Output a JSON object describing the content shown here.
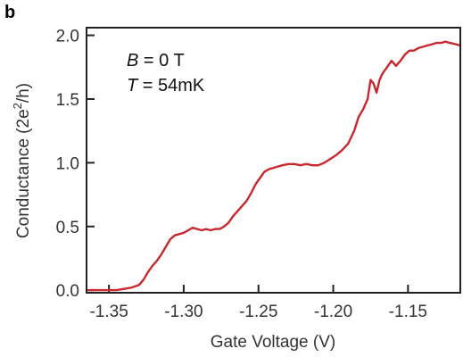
{
  "panel_label": "b",
  "colors": {
    "series": "#c8282d",
    "axis": "#222222"
  },
  "chart_data": {
    "type": "line",
    "title": "",
    "xlabel": "Gate Voltage (V)",
    "ylabel_main": "Conductance (2e",
    "ylabel_sup": "2",
    "ylabel_tail": "/h)",
    "xlim": [
      -1.365,
      -1.115
    ],
    "ylim": [
      -0.02,
      2.06
    ],
    "x_ticks": [
      -1.35,
      -1.3,
      -1.25,
      -1.2,
      -1.15
    ],
    "x_tick_labels": [
      "-1.35",
      "-1.30",
      "-1.25",
      "-1.20",
      "-1.15"
    ],
    "y_ticks": [
      0.0,
      0.5,
      1.0,
      1.5,
      2.0
    ],
    "y_tick_labels": [
      "0.0",
      "0.5",
      "1.0",
      "1.5",
      "2.0"
    ],
    "grid": false,
    "annotations": [
      {
        "var": "B",
        "text": " = 0 T"
      },
      {
        "var": "T",
        "text": " = 54mK"
      }
    ],
    "series": [
      {
        "x": [
          -1.365,
          -1.355,
          -1.345,
          -1.34,
          -1.335,
          -1.33,
          -1.327,
          -1.324,
          -1.321,
          -1.318,
          -1.315,
          -1.312,
          -1.309,
          -1.306,
          -1.303,
          -1.3,
          -1.297,
          -1.294,
          -1.291,
          -1.288,
          -1.285,
          -1.282,
          -1.279,
          -1.276,
          -1.273,
          -1.27,
          -1.267,
          -1.264,
          -1.261,
          -1.258,
          -1.255,
          -1.252,
          -1.249,
          -1.246,
          -1.243,
          -1.24,
          -1.237,
          -1.234,
          -1.23,
          -1.226,
          -1.222,
          -1.218,
          -1.214,
          -1.21,
          -1.206,
          -1.202,
          -1.198,
          -1.194,
          -1.19,
          -1.186,
          -1.183,
          -1.18,
          -1.177,
          -1.175,
          -1.173,
          -1.171,
          -1.169,
          -1.167,
          -1.164,
          -1.161,
          -1.158,
          -1.155,
          -1.152,
          -1.149,
          -1.146,
          -1.143,
          -1.14,
          -1.137,
          -1.134,
          -1.131,
          -1.128,
          -1.125,
          -1.122,
          -1.118,
          -1.115
        ],
        "y": [
          0.0,
          0.0,
          0.0,
          0.01,
          0.02,
          0.04,
          0.08,
          0.14,
          0.19,
          0.23,
          0.28,
          0.34,
          0.4,
          0.43,
          0.44,
          0.45,
          0.47,
          0.49,
          0.48,
          0.47,
          0.48,
          0.47,
          0.48,
          0.48,
          0.5,
          0.53,
          0.58,
          0.62,
          0.66,
          0.7,
          0.76,
          0.83,
          0.88,
          0.93,
          0.95,
          0.96,
          0.97,
          0.98,
          0.99,
          0.99,
          0.98,
          0.99,
          0.98,
          0.98,
          1.0,
          1.03,
          1.06,
          1.1,
          1.15,
          1.25,
          1.36,
          1.42,
          1.5,
          1.65,
          1.62,
          1.55,
          1.65,
          1.7,
          1.75,
          1.8,
          1.76,
          1.8,
          1.85,
          1.88,
          1.88,
          1.9,
          1.91,
          1.92,
          1.93,
          1.94,
          1.94,
          1.95,
          1.94,
          1.93,
          1.92
        ]
      }
    ]
  }
}
